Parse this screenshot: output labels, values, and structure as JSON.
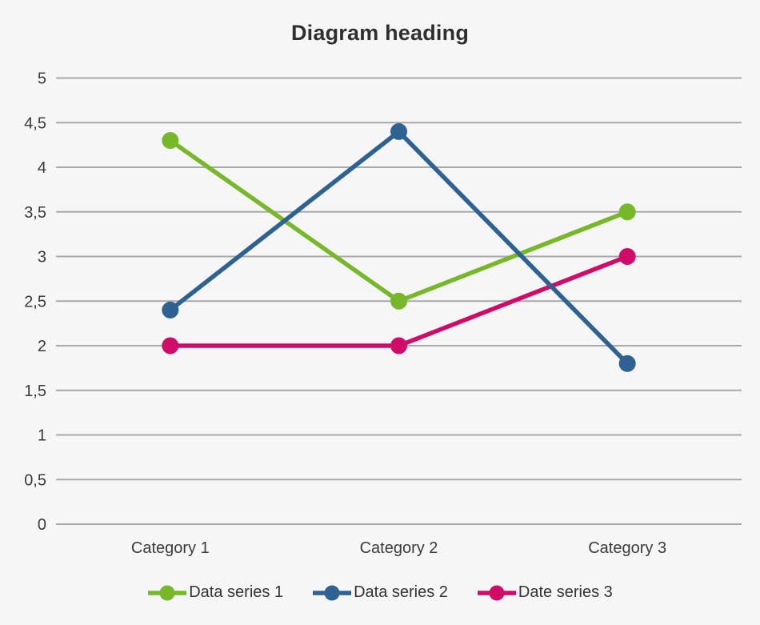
{
  "title": "Diagram heading",
  "chart_data": {
    "type": "line",
    "categories": [
      "Category 1",
      "Category 2",
      "Category 3"
    ],
    "series": [
      {
        "name": "Data series 1",
        "color": "#76B82A",
        "values": [
          4.3,
          2.5,
          3.5
        ]
      },
      {
        "name": "Data series 2",
        "color": "#2E6293",
        "values": [
          2.4,
          4.4,
          1.8
        ]
      },
      {
        "name": "Date series 3",
        "color": "#CF0D69",
        "values": [
          2.0,
          2.0,
          3.0
        ]
      }
    ],
    "ylim": [
      0,
      5
    ],
    "ytick_step": 0.5,
    "ytick_labels": [
      "0",
      "0,5",
      "1",
      "1,5",
      "2",
      "2,5",
      "3",
      "3,5",
      "4",
      "4,5",
      "5"
    ],
    "decimal_separator": ",",
    "grid": true,
    "legend_position": "bottom",
    "draw_order": [
      0,
      2,
      1
    ]
  },
  "style": {
    "background": "#F6F6F6",
    "gridline_color": "#A8A8A8",
    "axis_text_color": "#3A3A3A",
    "title_color": "#2F2F2F",
    "legend_text_color": "#333333"
  }
}
